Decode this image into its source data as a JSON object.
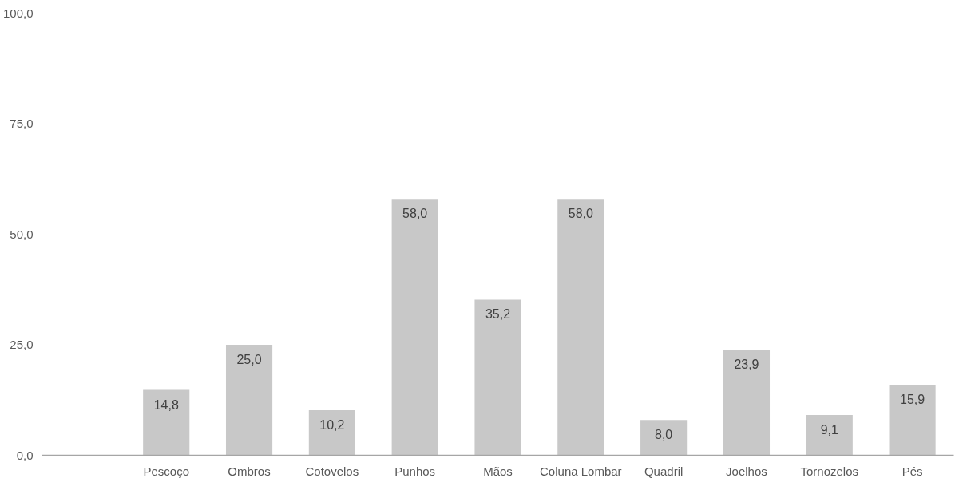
{
  "chart_data": {
    "type": "bar",
    "categories": [
      null,
      "Pescoço",
      "Ombros",
      "Cotovelos",
      "Punhos",
      "Mãos",
      "Coluna Lombar",
      "Quadril",
      "Joelhos",
      "Tornozelos",
      "Pés"
    ],
    "values": [
      null,
      14.8,
      25.0,
      10.2,
      58.0,
      35.2,
      58.0,
      8.0,
      23.9,
      9.1,
      15.9
    ],
    "value_labels": [
      null,
      "14,8",
      "25,0",
      "10,2",
      "58,0",
      "35,2",
      "58,0",
      "8,0",
      "23,9",
      "9,1",
      "15,9"
    ],
    "color": "#c8c8c8",
    "ylim": [
      0,
      100
    ],
    "yticks": [
      {
        "value": 0,
        "label": "0,0"
      },
      {
        "value": 25,
        "label": "25,0"
      },
      {
        "value": 50,
        "label": "50,0"
      },
      {
        "value": 75,
        "label": "75,0"
      },
      {
        "value": 100,
        "label": "100,0"
      }
    ],
    "grid": false
  }
}
